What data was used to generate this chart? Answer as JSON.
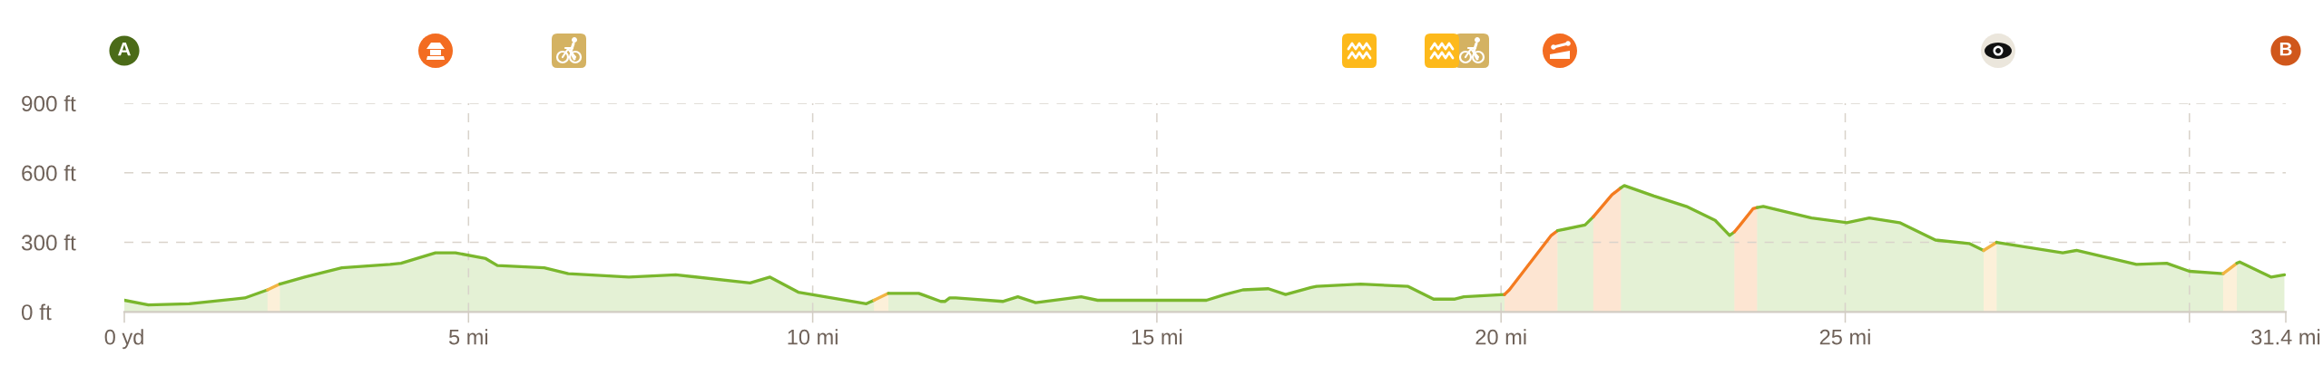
{
  "chart_data": {
    "type": "area",
    "xlim": [
      0,
      31.4
    ],
    "xticks": [
      {
        "value": 0,
        "label": "0 yd"
      },
      {
        "value": 5,
        "label": "5 mi"
      },
      {
        "value": 10,
        "label": "10 mi"
      },
      {
        "value": 15,
        "label": "15 mi"
      },
      {
        "value": 20,
        "label": "20 mi"
      },
      {
        "value": 25,
        "label": "25 mi"
      },
      {
        "value": 30,
        "label": null
      },
      {
        "value": 31.4,
        "label": "31.4 mi"
      }
    ],
    "ylim": [
      0,
      900
    ],
    "yticks": [
      {
        "value": 0,
        "label": "0 ft"
      },
      {
        "value": 300,
        "label": "300 ft"
      },
      {
        "value": 600,
        "label": "600 ft"
      },
      {
        "value": 900,
        "label": "900 ft"
      }
    ],
    "grid": true,
    "annotations": [
      "A",
      "B"
    ],
    "series": [
      {
        "color": "#7ab72d",
        "x": [
          0.0,
          0.35,
          0.94,
          1.75,
          2.08
        ],
        "values": [
          50,
          30,
          35,
          60,
          95
        ]
      },
      {
        "color": "#f2b443",
        "x": [
          2.08,
          2.26
        ],
        "values": [
          95,
          120
        ]
      },
      {
        "color": "#7ab72d",
        "x": [
          2.26,
          2.62,
          3.16,
          3.86,
          4.02,
          4.52,
          4.81,
          5.25,
          5.42,
          6.1,
          6.45,
          7.33,
          8.01,
          9.09,
          9.38,
          9.79,
          10.78,
          10.89
        ],
        "values": [
          120,
          150,
          190,
          205,
          210,
          255,
          255,
          230,
          200,
          190,
          165,
          150,
          160,
          125,
          150,
          85,
          35,
          50
        ]
      },
      {
        "color": "#f2b443",
        "x": [
          10.89,
          11.1
        ],
        "values": [
          50,
          80
        ]
      },
      {
        "color": "#7ab72d",
        "x": [
          11.1,
          11.54,
          11.86,
          11.92,
          11.99,
          12.08,
          12.76,
          12.98,
          13.24,
          13.9,
          14.14,
          15.72,
          15.99,
          16.25,
          16.62,
          16.87,
          17.24,
          17.32,
          17.96,
          18.65,
          19.02,
          19.33,
          19.46,
          20.05
        ],
        "values": [
          80,
          80,
          45,
          45,
          60,
          60,
          45,
          65,
          40,
          65,
          50,
          50,
          75,
          95,
          100,
          75,
          105,
          110,
          120,
          110,
          55,
          55,
          65,
          75
        ]
      },
      {
        "color": "#f47b20",
        "x": [
          20.05,
          20.12,
          20.73,
          20.82
        ],
        "values": [
          75,
          95,
          330,
          350
        ]
      },
      {
        "color": "#7ab72d",
        "x": [
          20.82,
          21.22,
          21.34
        ],
        "values": [
          350,
          375,
          410
        ]
      },
      {
        "color": "#f47b20",
        "x": [
          21.34,
          21.44,
          21.61,
          21.74
        ],
        "values": [
          410,
          445,
          505,
          535
        ]
      },
      {
        "color": "#7ab72d",
        "x": [
          21.74,
          21.79,
          22.22,
          22.69,
          23.11,
          23.32,
          23.39
        ],
        "values": [
          535,
          545,
          500,
          455,
          395,
          330,
          345
        ]
      },
      {
        "color": "#f47b20",
        "x": [
          23.39,
          23.46,
          23.66,
          23.72
        ],
        "values": [
          345,
          370,
          445,
          450
        ]
      },
      {
        "color": "#7ab72d",
        "x": [
          23.72,
          23.81,
          24.51,
          25.02,
          25.35,
          25.79,
          26.31,
          26.8,
          27.01
        ],
        "values": [
          450,
          455,
          405,
          385,
          405,
          385,
          310,
          295,
          265
        ]
      },
      {
        "color": "#f2b443",
        "x": [
          27.01,
          27.2
        ],
        "values": [
          265,
          300
        ]
      },
      {
        "color": "#7ab72d",
        "x": [
          27.2,
          28.16,
          28.36,
          29.23,
          29.67,
          30.0,
          30.49
        ],
        "values": [
          300,
          255,
          265,
          205,
          210,
          175,
          165
        ]
      },
      {
        "color": "#f2b443",
        "x": [
          30.49,
          30.69
        ],
        "values": [
          165,
          210
        ]
      },
      {
        "color": "#7ab72d",
        "x": [
          30.69,
          30.73,
          31.19,
          31.38
        ],
        "values": [
          210,
          215,
          150,
          160
        ]
      }
    ]
  }
}
